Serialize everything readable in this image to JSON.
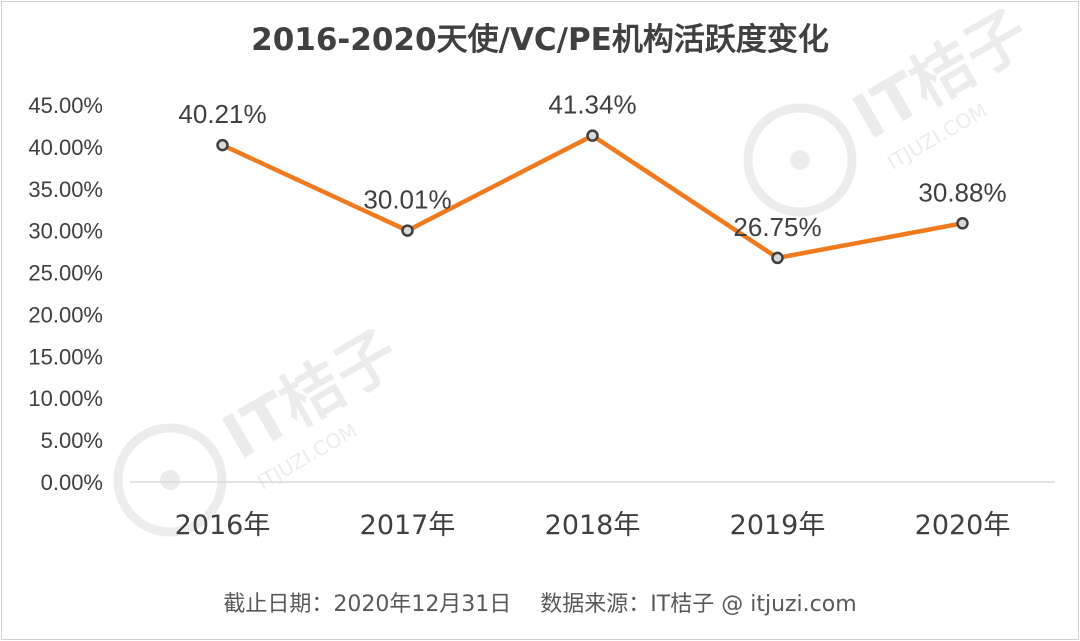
{
  "chart_data": {
    "type": "line",
    "title": "2016-2020天使/VC/PE机构活跃度变化",
    "categories": [
      "2016年",
      "2017年",
      "2018年",
      "2019年",
      "2020年"
    ],
    "series": [
      {
        "name": "机构活跃度",
        "values": [
          40.21,
          30.01,
          41.34,
          26.75,
          30.88
        ]
      }
    ],
    "data_labels": [
      "40.21%",
      "30.01%",
      "41.34%",
      "26.75%",
      "30.88%"
    ],
    "ylim": [
      0,
      45
    ],
    "ytick_values": [
      0,
      5,
      10,
      15,
      20,
      25,
      30,
      35,
      40,
      45
    ],
    "ytick_labels": [
      "0.00%",
      "5.00%",
      "10.00%",
      "15.00%",
      "20.00%",
      "25.00%",
      "30.00%",
      "35.00%",
      "40.00%",
      "45.00%"
    ],
    "xlabel": "",
    "ylabel": "",
    "grid": false,
    "legend": "none"
  },
  "colors": {
    "line": "#f07a1d",
    "marker_fill": "#d9d9d9",
    "marker_stroke": "#404040",
    "axis": "#d9d9d9",
    "text": "#404040"
  },
  "watermark": {
    "brand": "IT桔子",
    "domain": "ITJUZI.COM"
  },
  "footer": "截止日期：2020年12月31日　 数据来源：IT桔子 @ itjuzi.com"
}
